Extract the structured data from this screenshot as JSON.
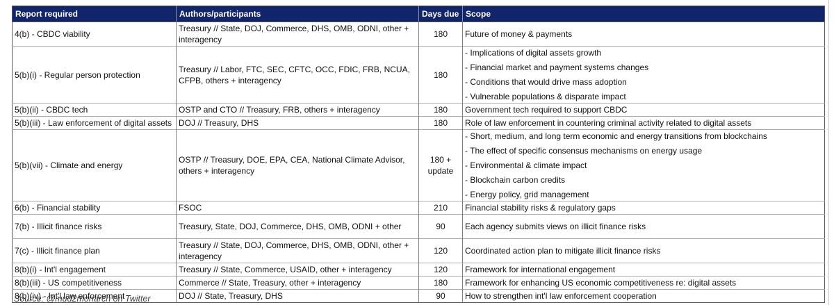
{
  "chart_data": {
    "type": "table",
    "columns": [
      "Report required",
      "Authors/participants",
      "Days due",
      "Scope"
    ],
    "rows": [
      {
        "report": "4(b) - CBDC viability",
        "authors": "Treasury // State, DOJ, Commerce, DHS, OMB, ODNI, other + interagency",
        "days_due": "180",
        "scope": [
          "Future of money & payments"
        ]
      },
      {
        "report": "5(b)(i) - Regular person protection",
        "authors": "Treasury // Labor, FTC, SEC, CFTC, OCC, FDIC, FRB, NCUA, CFPB, others + interagency",
        "days_due": "180",
        "scope": [
          "- Implications of digital assets growth",
          "- Financial market and payment systems changes",
          "- Conditions that would drive mass adoption",
          "- Vulnerable populations & disparate impact"
        ]
      },
      {
        "report": "5(b)(ii) - CBDC tech",
        "authors": "OSTP and CTO // Treasury, FRB, others + interagency",
        "days_due": "180",
        "scope": [
          "Government tech required to support CBDC"
        ]
      },
      {
        "report": "5(b)(iii) - Law enforcement of digital assets",
        "authors": "DOJ // Treasury, DHS",
        "days_due": "180",
        "scope": [
          "Role of law enforcement in countering criminal activity related to digital assets"
        ]
      },
      {
        "report": "5(b)(vii) - Climate and energy",
        "authors": "OSTP // Treasury, DOE, EPA, CEA, National Climate Advisor, others + interagency",
        "days_due": "180 +\nupdate",
        "scope": [
          "- Short, medium, and long term economic and energy transitions from blockchains",
          "- The effect of specific consensus mechanisms on energy usage",
          "- Environmental & climate impact",
          "- Blockchain carbon credits",
          "- Energy policy, grid management"
        ]
      },
      {
        "report": "6(b) - Financial stability",
        "authors": "FSOC",
        "days_due": "210",
        "scope": [
          "Financial stability risks & regulatory gaps"
        ]
      },
      {
        "report": "7(b) - Illicit finance risks",
        "authors": "Treasury, State, DOJ, Commerce, DHS, OMB, ODNI + other",
        "days_due": "90",
        "scope": [
          "Each agency submits views on illicit finance risks"
        ]
      },
      {
        "report": "7(c) - Illicit finance plan",
        "authors": "Treasury // State, DOJ, Commerce, DHS, OMB, ODNI, other + interagency",
        "days_due": "120",
        "scope": [
          "Coordinated action plan to mitigate illicit finance risks"
        ]
      },
      {
        "report": "8(b)(i) - Int'l engagement",
        "authors": "Treasury // State, Commerce, USAID, other + interagency",
        "days_due": "120",
        "scope": [
          "Framework for international engagement"
        ]
      },
      {
        "report": "8(b)(iii) - US competitiveness",
        "authors": "Commerce // State, Treasury, other + interagency",
        "days_due": "180",
        "scope": [
          "Framework for enhancing US economic competitiveness re: digital assets"
        ]
      },
      {
        "report": "8(b)(iv) - Int'l law enforcement",
        "authors": "DOJ // State, Treasury, DHS",
        "days_due": "90",
        "scope": [
          "How to strengthen int'l law enforcement cooperation"
        ]
      }
    ]
  },
  "source_note": "Source: @mud2monarch on Twitter",
  "colors": {
    "header_bg": "#12246a",
    "header_text": "#ffffff",
    "border_outer": "#595959",
    "border_vertical": "#7f7f7f",
    "border_horizontal": "#ababab",
    "body_text": "#111111",
    "source_text": "#3f3f3f"
  }
}
